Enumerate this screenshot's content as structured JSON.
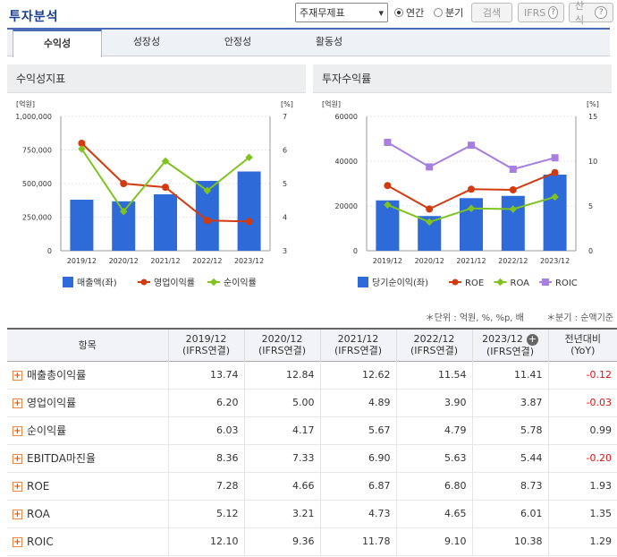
{
  "header": {
    "title": "투자분석"
  },
  "controls": {
    "select_value": "주재무제표",
    "radio_annual": "연간",
    "radio_quarter": "분기",
    "search_label": "검색",
    "ifrs_label": "IFRS",
    "formula_label": "산식",
    "help_glyph": "?"
  },
  "tabs": [
    "수익성",
    "성장성",
    "안정성",
    "활동성"
  ],
  "chart_left_title": "수익성지표",
  "chart_right_title": "투자수익률",
  "chart_data": [
    {
      "type": "bar",
      "title": "수익성지표",
      "categories": [
        "2019/12",
        "2020/12",
        "2021/12",
        "2022/12",
        "2023/12"
      ],
      "left_unit": "[억원]",
      "right_unit": "[%]",
      "left_ticks": [
        "1,000,000",
        "750,000",
        "500,000",
        "250,000",
        "0"
      ],
      "right_ticks": [
        "7",
        "6",
        "5",
        "4",
        "3"
      ],
      "ylim_left": [
        0,
        1000000
      ],
      "ylim_right": [
        3,
        7
      ],
      "bar": {
        "name": "매출액(좌)",
        "values": [
          380000,
          368000,
          420000,
          520000,
          590000
        ],
        "color": "#2f6bd8"
      },
      "lines": [
        {
          "name": "영업이익률",
          "values": [
            6.2,
            5.0,
            4.89,
            3.9,
            3.87
          ],
          "color": "#d23a10"
        },
        {
          "name": "순이익률",
          "values": [
            6.03,
            4.17,
            5.67,
            4.79,
            5.78
          ],
          "color": "#7fc41e"
        }
      ]
    },
    {
      "type": "bar",
      "title": "투자수익률",
      "categories": [
        "2019/12",
        "2020/12",
        "2021/12",
        "2022/12",
        "2023/12"
      ],
      "left_unit": "[억원]",
      "right_unit": "[%]",
      "left_ticks": [
        "60000",
        "40000",
        "20000",
        "0"
      ],
      "right_ticks": [
        "15",
        "10",
        "5",
        "0"
      ],
      "ylim_left": [
        0,
        60000
      ],
      "ylim_right": [
        0,
        15
      ],
      "bar": {
        "name": "당기순이익(좌)",
        "values": [
          22500,
          15500,
          23500,
          24500,
          34000
        ],
        "color": "#2f6bd8"
      },
      "lines": [
        {
          "name": "ROE",
          "values": [
            7.28,
            4.66,
            6.87,
            6.8,
            8.73
          ],
          "color": "#d23a10"
        },
        {
          "name": "ROA",
          "values": [
            5.12,
            3.21,
            4.73,
            4.65,
            6.01
          ],
          "color": "#7fc41e"
        },
        {
          "name": "ROIC",
          "values": [
            12.1,
            9.36,
            11.78,
            9.1,
            10.38
          ],
          "color": "#a87ee0"
        }
      ]
    }
  ],
  "notes": {
    "unit": "＊단위 : 억원, %, %p, 배",
    "quarter": "＊분기 : 순액기준"
  },
  "table": {
    "col_item": "항목",
    "columns": [
      {
        "l1": "2019/12",
        "l2": "(IFRS연결)"
      },
      {
        "l1": "2020/12",
        "l2": "(IFRS연결)"
      },
      {
        "l1": "2021/12",
        "l2": "(IFRS연결)"
      },
      {
        "l1": "2022/12",
        "l2": "(IFRS연결)"
      },
      {
        "l1": "2023/12",
        "l2": "(IFRS연결)"
      }
    ],
    "col_yoy": {
      "l1": "전년대비",
      "l2": "(YoY)"
    },
    "expand_glyph": "+",
    "rows": [
      {
        "name": "매출총이익률",
        "values": [
          "13.74",
          "12.84",
          "12.62",
          "11.54",
          "11.41"
        ],
        "yoy": "-0.12"
      },
      {
        "name": "영업이익률",
        "values": [
          "6.20",
          "5.00",
          "4.89",
          "3.90",
          "3.87"
        ],
        "yoy": "-0.03"
      },
      {
        "name": "순이익률",
        "values": [
          "6.03",
          "4.17",
          "5.67",
          "4.79",
          "5.78"
        ],
        "yoy": "0.99"
      },
      {
        "name": "EBITDA마진율",
        "values": [
          "8.36",
          "7.33",
          "6.90",
          "5.63",
          "5.44"
        ],
        "yoy": "-0.20"
      },
      {
        "name": "ROE",
        "values": [
          "7.28",
          "4.66",
          "6.87",
          "6.80",
          "8.73"
        ],
        "yoy": "1.93"
      },
      {
        "name": "ROA",
        "values": [
          "5.12",
          "3.21",
          "4.73",
          "4.65",
          "6.01"
        ],
        "yoy": "1.35"
      },
      {
        "name": "ROIC",
        "values": [
          "12.10",
          "9.36",
          "11.78",
          "9.10",
          "10.38"
        ],
        "yoy": "1.29"
      }
    ]
  },
  "colors": {
    "accent": "#1a3f8c",
    "negative": "#e01010"
  }
}
